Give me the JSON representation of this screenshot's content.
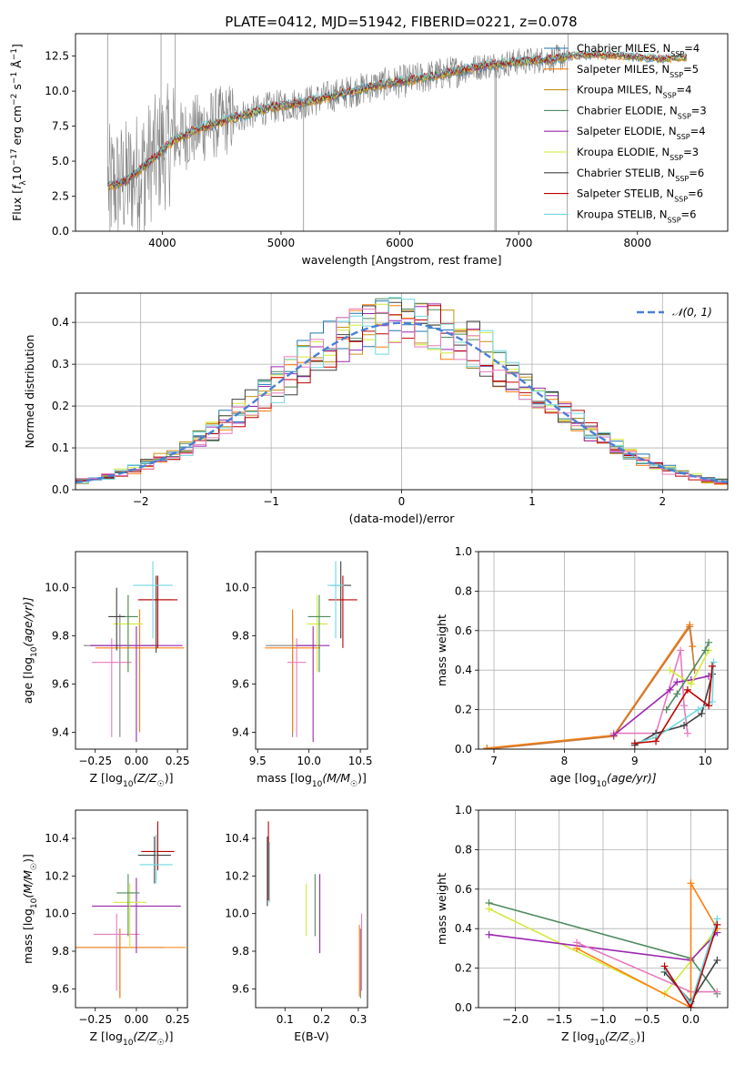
{
  "figure": {
    "title": "PLATE=0412, MJD=51942, FIBERID=0221, z=0.078"
  },
  "chart_data": [
    {
      "id": "spectrum",
      "type": "line",
      "title": "PLATE=0412, MJD=51942, FIBERID=0221, z=0.078",
      "xlabel": "wavelength [Angstrom, rest frame]",
      "ylabel": "Flux [f_λ 10⁻¹⁷ erg cm⁻² s⁻¹ Å⁻¹]",
      "xlim": [
        3270,
        8760
      ],
      "ylim": [
        0,
        14.1
      ],
      "xticks": [
        4000,
        5000,
        6000,
        7000,
        8000
      ],
      "yticks": [
        0.0,
        2.5,
        5.0,
        7.5,
        10.0,
        12.5
      ],
      "legend_position": "upper-right",
      "data_trend": {
        "x": [
          3550,
          3700,
          3900,
          4100,
          4300,
          4600,
          4900,
          5200,
          5500,
          5800,
          6100,
          6400,
          6700,
          7000,
          7300,
          7420,
          7600,
          7900,
          8200,
          8400
        ],
        "y": [
          3.2,
          3.6,
          5.0,
          6.5,
          7.3,
          8.1,
          8.8,
          9.2,
          9.8,
          10.4,
          10.8,
          11.3,
          11.8,
          12.1,
          12.3,
          12.5,
          12.6,
          12.5,
          12.3,
          12.4
        ]
      },
      "series": [
        {
          "name": "Chabrier MILES, N_SSP=4",
          "color": "#1f77b4"
        },
        {
          "name": "Salpeter MILES, N_SSP=5",
          "color": "#ff7f0e"
        },
        {
          "name": "Kroupa MILES, N_SSP=4",
          "color": "#c89212"
        },
        {
          "name": "Chabrier ELODIE, N_SSP=3",
          "color": "#4f8a5f"
        },
        {
          "name": "Salpeter ELODIE, N_SSP=4",
          "color": "#9c27b0"
        },
        {
          "name": "Kroupa ELODIE, N_SSP=3",
          "color": "#d4ea3a"
        },
        {
          "name": "Chabrier STELIB, N_SSP=6",
          "color": "#404040"
        },
        {
          "name": "Salpeter STELIB, N_SSP=6",
          "color": "#c00000"
        },
        {
          "name": "Kroupa STELIB, N_SSP=6",
          "color": "#6fd8e0"
        }
      ]
    },
    {
      "id": "residuals",
      "type": "line",
      "xlabel": "(data-model)/error",
      "ylabel": "Normed distribution",
      "xlim": [
        -2.5,
        2.5
      ],
      "ylim": [
        0,
        0.47
      ],
      "xticks": [
        -2,
        -1,
        0,
        1,
        2
      ],
      "yticks": [
        0.0,
        0.1,
        0.2,
        0.3,
        0.4
      ],
      "grid": true,
      "legend_position": "upper-right",
      "reference": {
        "name": "𝒩(0, 1)",
        "color": "#4a7fd4",
        "mean": 0,
        "sigma": 1
      },
      "histogram_bin_width": 0.1
    },
    {
      "id": "age-vs-Z",
      "type": "scatter",
      "xlabel": "Z [log10(Z/Z☉)]",
      "ylabel": "age [log10(age/yr)]",
      "xlim": [
        -0.37,
        0.31
      ],
      "ylim": [
        9.33,
        10.15
      ],
      "xticks": [
        -0.25,
        0.0,
        0.25
      ],
      "yticks": [
        9.4,
        9.6,
        9.8,
        10.0
      ],
      "points": [
        {
          "color": "#808080",
          "x": -0.1,
          "y": 9.76,
          "xerr": 0.22,
          "yerr_lo": 0.38,
          "yerr_hi": 0.13
        },
        {
          "color": "#ff7f0e",
          "x": 0.02,
          "y": 9.75,
          "xerr": 0.27,
          "yerr_lo": 0.35,
          "yerr_hi": 0.16
        },
        {
          "color": "#e87ac0",
          "x": -0.15,
          "y": 9.69,
          "xerr": 0.12,
          "yerr_lo": 0.31,
          "yerr_hi": 0.1
        },
        {
          "color": "#9c27b0",
          "x": 0.0,
          "y": 9.76,
          "xerr": 0.28,
          "yerr_lo": 0.4,
          "yerr_hi": 0.08
        },
        {
          "color": "#d4ea3a",
          "x": -0.05,
          "y": 9.85,
          "xerr": 0.09,
          "yerr_lo": 0.2,
          "yerr_hi": 0.12
        },
        {
          "color": "#4f8a5f",
          "x": -0.05,
          "y": 9.88,
          "xerr": 0.06,
          "yerr_lo": 0.23,
          "yerr_hi": 0.09
        },
        {
          "color": "#404040",
          "x": 0.12,
          "y": 9.95,
          "xerr": 0.1,
          "yerr_lo": 0.22,
          "yerr_hi": 0.1
        },
        {
          "color": "#404040",
          "x": -0.12,
          "y": 9.88,
          "xerr": 0.05,
          "yerr_lo": 0.14,
          "yerr_hi": 0.12
        },
        {
          "color": "#c00000",
          "x": 0.13,
          "y": 9.95,
          "xerr": 0.12,
          "yerr_lo": 0.2,
          "yerr_hi": 0.1
        },
        {
          "color": "#6fd8e0",
          "x": 0.1,
          "y": 10.01,
          "xerr": 0.12,
          "yerr_lo": 0.22,
          "yerr_hi": 0.1
        }
      ]
    },
    {
      "id": "age-vs-mass",
      "type": "scatter",
      "xlabel": "mass [log10(M/M☉)]",
      "ylabel": "",
      "xlim": [
        9.48,
        10.57
      ],
      "ylim": [
        9.33,
        10.15
      ],
      "xticks": [
        9.5,
        10.0,
        10.5
      ],
      "yticks": [
        9.4,
        9.6,
        9.8,
        10.0
      ],
      "points": [
        {
          "color": "#808080",
          "x": 9.84,
          "y": 9.76,
          "xerr": 0.26,
          "yerr_lo": 0.38,
          "yerr_hi": 0.13
        },
        {
          "color": "#ff7f0e",
          "x": 9.84,
          "y": 9.75,
          "xerr": 0.27,
          "yerr_lo": 0.35,
          "yerr_hi": 0.16
        },
        {
          "color": "#e87ac0",
          "x": 9.88,
          "y": 9.69,
          "xerr": 0.09,
          "yerr_lo": 0.31,
          "yerr_hi": 0.1
        },
        {
          "color": "#9c27b0",
          "x": 10.04,
          "y": 9.76,
          "xerr": 0.16,
          "yerr_lo": 0.4,
          "yerr_hi": 0.08
        },
        {
          "color": "#d4ea3a",
          "x": 10.08,
          "y": 9.85,
          "xerr": 0.1,
          "yerr_lo": 0.2,
          "yerr_hi": 0.12
        },
        {
          "color": "#4f8a5f",
          "x": 10.1,
          "y": 9.88,
          "xerr": 0.11,
          "yerr_lo": 0.23,
          "yerr_hi": 0.09
        },
        {
          "color": "#404040",
          "x": 10.31,
          "y": 10.01,
          "xerr": 0.1,
          "yerr_lo": 0.22,
          "yerr_hi": 0.1
        },
        {
          "color": "#c00000",
          "x": 10.33,
          "y": 9.95,
          "xerr": 0.14,
          "yerr_lo": 0.2,
          "yerr_hi": 0.1
        },
        {
          "color": "#6fd8e0",
          "x": 10.26,
          "y": 10.01,
          "xerr": 0.08,
          "yerr_lo": 0.22,
          "yerr_hi": 0.1
        }
      ]
    },
    {
      "id": "weight-vs-age",
      "type": "line",
      "xlabel": "age [log10(age/yr)]",
      "ylabel": "mass weight",
      "xlim": [
        6.78,
        10.32
      ],
      "ylim": [
        0,
        1.0
      ],
      "xticks": [
        7,
        8,
        9,
        10
      ],
      "yticks": [
        0.0,
        0.2,
        0.4,
        0.6,
        0.8,
        1.0
      ],
      "grid": true,
      "series": [
        {
          "color": "#ff7f0e",
          "x": [
            6.9,
            8.7,
            9.78,
            9.82
          ],
          "y": [
            0.005,
            0.07,
            0.63,
            0.52
          ]
        },
        {
          "color": "#c87a3a",
          "x": [
            6.9,
            8.7,
            9.78,
            9.85
          ],
          "y": [
            0.0,
            0.065,
            0.62,
            0.4
          ]
        },
        {
          "color": "#e87ac0",
          "x": [
            8.7,
            9.3,
            9.65,
            9.7,
            9.75
          ],
          "y": [
            0.08,
            0.08,
            0.5,
            0.22,
            0.08
          ]
        },
        {
          "color": "#9c27b0",
          "x": [
            8.7,
            9.5,
            9.6,
            9.8,
            10.05
          ],
          "y": [
            0.07,
            0.3,
            0.34,
            0.35,
            0.37
          ]
        },
        {
          "color": "#d4ea3a",
          "x": [
            9.5,
            9.8,
            10.05
          ],
          "y": [
            0.4,
            0.33,
            0.5
          ]
        },
        {
          "color": "#4f8a5f",
          "x": [
            9.45,
            9.6,
            10.0,
            10.05
          ],
          "y": [
            0.2,
            0.28,
            0.5,
            0.54
          ]
        },
        {
          "color": "#404040",
          "x": [
            9.0,
            9.3,
            9.7,
            9.95,
            10.1
          ],
          "y": [
            0.02,
            0.08,
            0.12,
            0.18,
            0.38
          ]
        },
        {
          "color": "#6fd8e0",
          "x": [
            9.0,
            9.3,
            9.9,
            10.1,
            10.12
          ],
          "y": [
            0.03,
            0.06,
            0.2,
            0.24,
            0.44
          ]
        },
        {
          "color": "#c00000",
          "x": [
            9.0,
            9.3,
            9.75,
            10.05,
            10.1
          ],
          "y": [
            0.03,
            0.04,
            0.3,
            0.22,
            0.42
          ]
        }
      ]
    },
    {
      "id": "mass-vs-Z",
      "type": "scatter",
      "xlabel": "Z [log10(Z/Z☉)]",
      "ylabel": "mass [log10(M/M☉)]",
      "xlim": [
        -0.37,
        0.31
      ],
      "ylim": [
        9.5,
        10.55
      ],
      "xticks": [
        -0.25,
        0.0,
        0.25
      ],
      "yticks": [
        9.6,
        9.8,
        10.0,
        10.2,
        10.4
      ],
      "points": [
        {
          "color": "#808080",
          "x": -0.1,
          "y": 9.82,
          "xerr": 0.27,
          "yerr_lo": 0.26,
          "yerr_hi": 0.1
        },
        {
          "color": "#ff7f0e",
          "x": -0.1,
          "y": 9.82,
          "xerr": 0.4,
          "yerr_lo": 0.27,
          "yerr_hi": 0.1
        },
        {
          "color": "#e87ac0",
          "x": -0.12,
          "y": 9.89,
          "xerr": 0.14,
          "yerr_lo": 0.3,
          "yerr_hi": 0.11
        },
        {
          "color": "#9c27b0",
          "x": 0.0,
          "y": 10.04,
          "xerr": 0.27,
          "yerr_lo": 0.25,
          "yerr_hi": 0.15
        },
        {
          "color": "#d4ea3a",
          "x": -0.04,
          "y": 10.06,
          "xerr": 0.1,
          "yerr_lo": 0.24,
          "yerr_hi": 0.1
        },
        {
          "color": "#4f8a5f",
          "x": -0.05,
          "y": 10.11,
          "xerr": 0.07,
          "yerr_lo": 0.23,
          "yerr_hi": 0.1
        },
        {
          "color": "#404040",
          "x": 0.11,
          "y": 10.31,
          "xerr": 0.1,
          "yerr_lo": 0.15,
          "yerr_hi": 0.1
        },
        {
          "color": "#c00000",
          "x": 0.13,
          "y": 10.33,
          "xerr": 0.1,
          "yerr_lo": 0.1,
          "yerr_hi": 0.16
        },
        {
          "color": "#6fd8e0",
          "x": 0.12,
          "y": 10.26,
          "xerr": 0.1,
          "yerr_lo": 0.1,
          "yerr_hi": 0.16
        }
      ]
    },
    {
      "id": "mass-vs-ebv",
      "type": "scatter",
      "xlabel": "E(B-V)",
      "ylabel": "",
      "xlim": [
        0.02,
        0.325
      ],
      "ylim": [
        9.5,
        10.55
      ],
      "xticks": [
        0.1,
        0.2,
        0.3
      ],
      "yticks": [
        9.6,
        9.8,
        10.0,
        10.2,
        10.4
      ],
      "points": [
        {
          "color": "#404040",
          "x": 0.052,
          "y": 10.31,
          "yerr_lo": 0.27,
          "yerr_hi": 0.1
        },
        {
          "color": "#c00000",
          "x": 0.055,
          "y": 10.33,
          "yerr_lo": 0.26,
          "yerr_hi": 0.16
        },
        {
          "color": "#6fd8e0",
          "x": 0.058,
          "y": 10.26,
          "yerr_lo": 0.2,
          "yerr_hi": 0.12
        },
        {
          "color": "#d4ea3a",
          "x": 0.158,
          "y": 10.06,
          "yerr_lo": 0.18,
          "yerr_hi": 0.1
        },
        {
          "color": "#4f8a5f",
          "x": 0.182,
          "y": 10.11,
          "yerr_lo": 0.23,
          "yerr_hi": 0.1
        },
        {
          "color": "#9c27b0",
          "x": 0.195,
          "y": 10.04,
          "yerr_lo": 0.25,
          "yerr_hi": 0.17
        },
        {
          "color": "#ff7f0e",
          "x": 0.303,
          "y": 9.82,
          "yerr_lo": 0.26,
          "yerr_hi": 0.12
        },
        {
          "color": "#808080",
          "x": 0.306,
          "y": 9.82,
          "yerr_lo": 0.27,
          "yerr_hi": 0.1
        },
        {
          "color": "#e87ac0",
          "x": 0.309,
          "y": 9.89,
          "yerr_lo": 0.3,
          "yerr_hi": 0.11
        }
      ]
    },
    {
      "id": "weight-vs-Z",
      "type": "line",
      "xlabel": "Z [log10(Z/Z☉)]",
      "ylabel": "mass weight",
      "xlim": [
        -2.42,
        0.42
      ],
      "ylim": [
        0,
        1.0
      ],
      "xticks": [
        -2.0,
        -1.5,
        -1.0,
        -0.5,
        0.0
      ],
      "yticks": [
        0.0,
        0.2,
        0.4,
        0.6,
        0.8,
        1.0
      ],
      "grid": true,
      "series": [
        {
          "color": "#4f8a5f",
          "x": [
            -2.3,
            0.0,
            0.3
          ],
          "y": [
            0.53,
            0.25,
            0.07
          ]
        },
        {
          "color": "#d4ea3a",
          "x": [
            -2.3,
            -0.3,
            0.3
          ],
          "y": [
            0.5,
            0.07,
            0.4
          ]
        },
        {
          "color": "#9c27b0",
          "x": [
            -2.3,
            0.0,
            0.3
          ],
          "y": [
            0.37,
            0.24,
            0.38
          ]
        },
        {
          "color": "#e87ac0",
          "x": [
            -1.3,
            0.0,
            0.3
          ],
          "y": [
            0.33,
            0.08,
            0.08
          ]
        },
        {
          "color": "#ff7f0e",
          "x": [
            -1.3,
            0.0,
            0.0,
            0.3
          ],
          "y": [
            0.3,
            0.0,
            0.63,
            0.4
          ]
        },
        {
          "color": "#404040",
          "x": [
            -0.3,
            0.0,
            0.3
          ],
          "y": [
            0.18,
            0.03,
            0.24
          ]
        },
        {
          "color": "#6fd8e0",
          "x": [
            -0.3,
            0.0,
            0.3
          ],
          "y": [
            0.2,
            0.02,
            0.45
          ]
        },
        {
          "color": "#c00000",
          "x": [
            -0.3,
            0.0,
            0.3
          ],
          "y": [
            0.21,
            0.0,
            0.42
          ]
        }
      ]
    }
  ]
}
